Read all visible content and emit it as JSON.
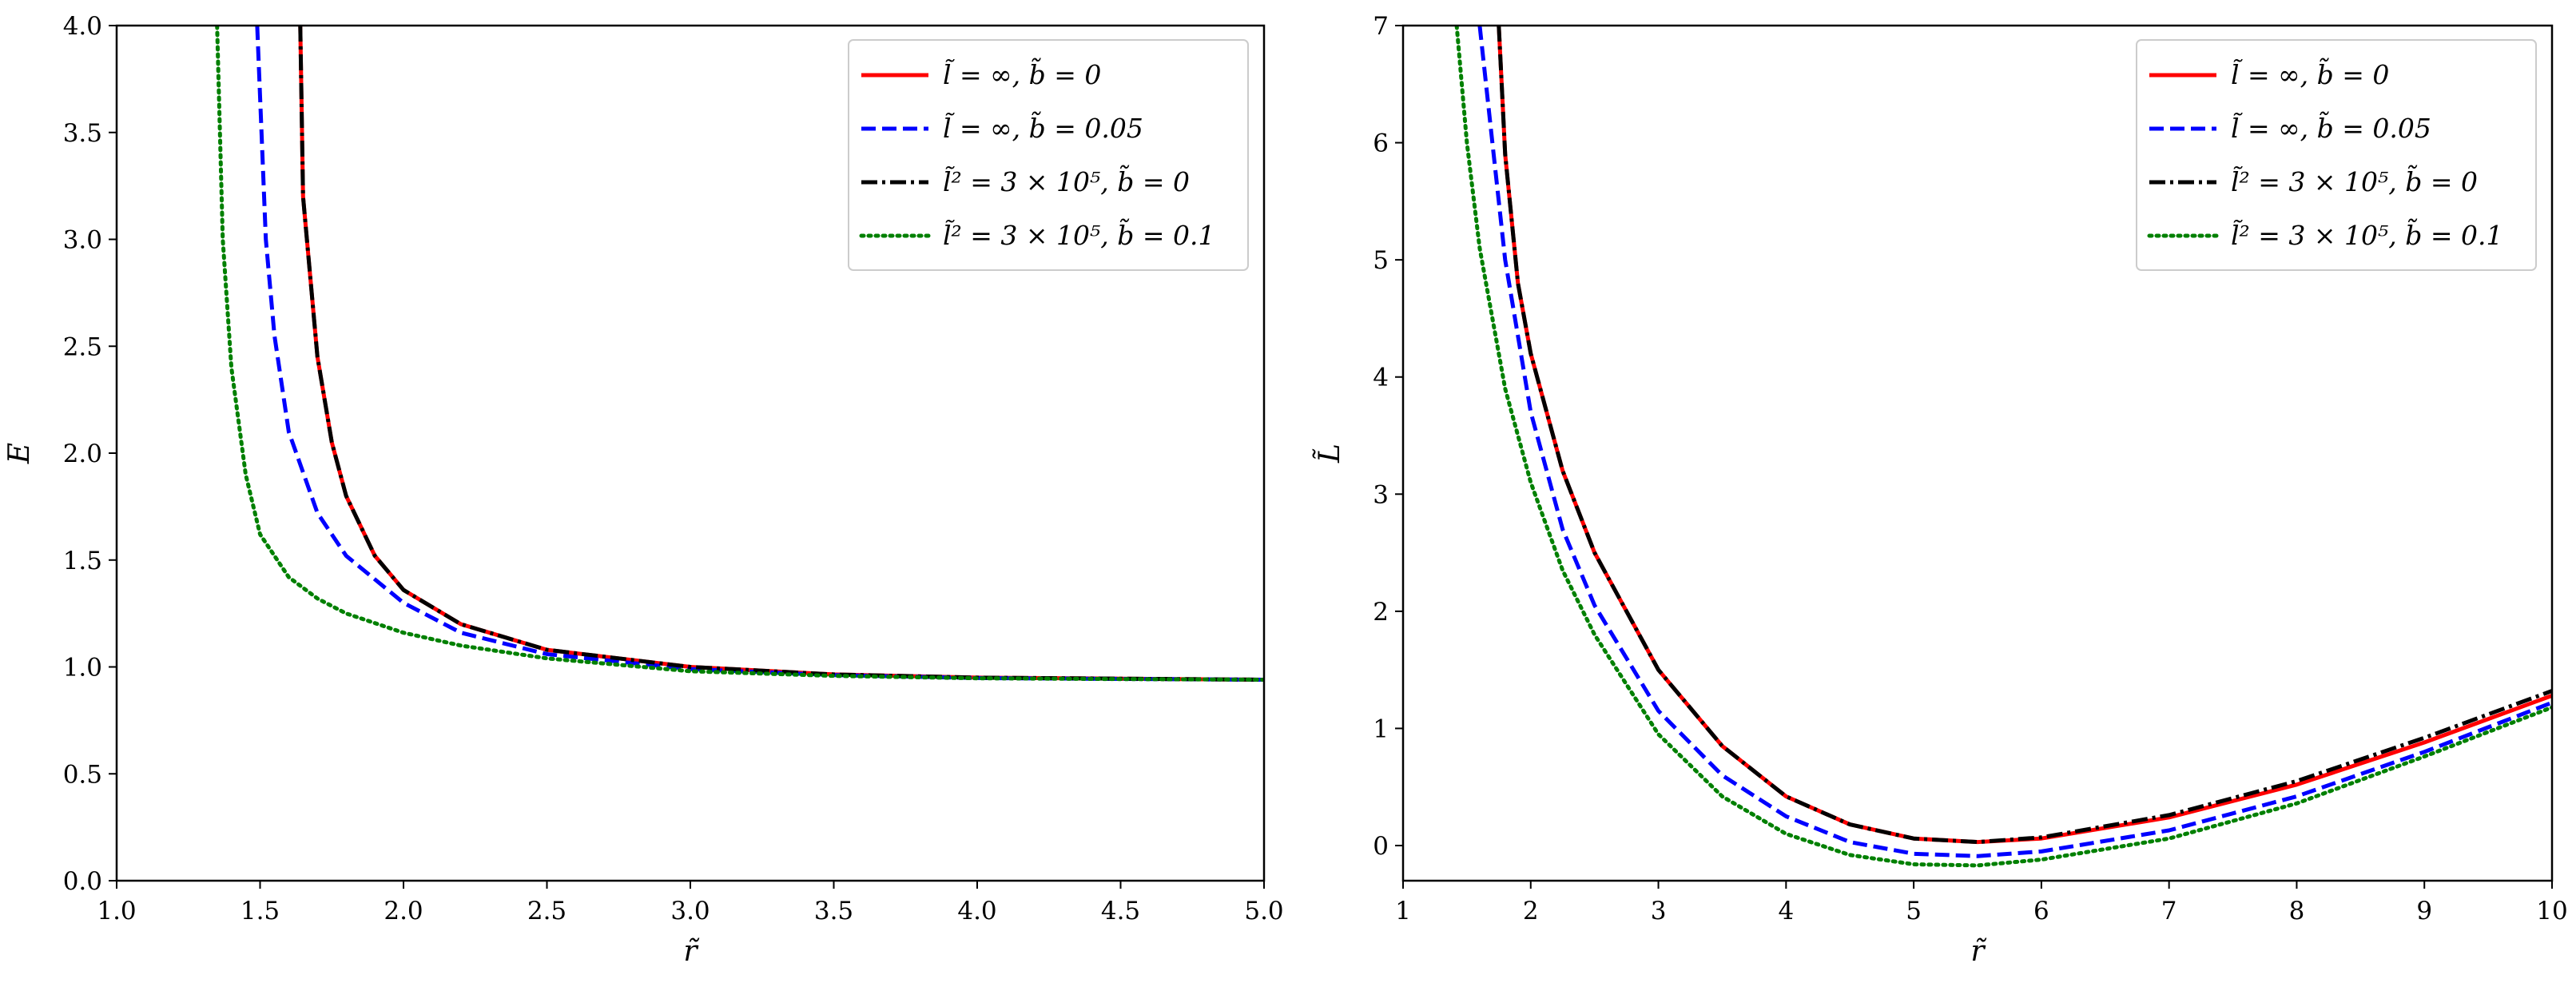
{
  "chart_data": [
    {
      "type": "line",
      "xlabel": "r̃",
      "ylabel": "E",
      "xlim": [
        1.0,
        5.0
      ],
      "ylim": [
        0.0,
        4.0
      ],
      "xticks": [
        "1.0",
        "1.5",
        "2.0",
        "2.5",
        "3.0",
        "3.5",
        "4.0",
        "4.5",
        "5.0"
      ],
      "yticks": [
        "0.0",
        "0.5",
        "1.0",
        "1.5",
        "2.0",
        "2.5",
        "3.0",
        "3.5",
        "4.0"
      ],
      "grid": false,
      "legend_position": "top-right",
      "series": [
        {
          "name": "l̃ = ∞, b̃ = 0",
          "color": "#ff0000",
          "style": "solid",
          "x": [
            1.64,
            1.65,
            1.7,
            1.75,
            1.8,
            1.9,
            2.0,
            2.2,
            2.5,
            3.0,
            3.5,
            4.0,
            4.5,
            5.0
          ],
          "y": [
            4.0,
            3.2,
            2.45,
            2.05,
            1.8,
            1.52,
            1.36,
            1.2,
            1.08,
            1.0,
            0.965,
            0.95,
            0.945,
            0.94
          ]
        },
        {
          "name": "l̃ = ∞, b̃ = 0.05",
          "color": "#0000ff",
          "style": "dashed",
          "x": [
            1.49,
            1.52,
            1.55,
            1.6,
            1.7,
            1.8,
            2.0,
            2.2,
            2.5,
            3.0,
            3.5,
            4.0,
            4.5,
            5.0
          ],
          "y": [
            4.0,
            3.0,
            2.55,
            2.1,
            1.72,
            1.52,
            1.3,
            1.16,
            1.06,
            0.99,
            0.962,
            0.948,
            0.944,
            0.94
          ]
        },
        {
          "name": "l̃² = 3 × 10⁵, b̃ = 0",
          "color": "#000000",
          "style": "dashdot",
          "x": [
            1.64,
            1.65,
            1.7,
            1.75,
            1.8,
            1.9,
            2.0,
            2.2,
            2.5,
            3.0,
            3.5,
            4.0,
            4.5,
            5.0
          ],
          "y": [
            4.0,
            3.2,
            2.45,
            2.05,
            1.8,
            1.52,
            1.36,
            1.2,
            1.08,
            1.0,
            0.965,
            0.95,
            0.945,
            0.94
          ]
        },
        {
          "name": "l̃² = 3 × 10⁵, b̃ = 0.1",
          "color": "#008000",
          "style": "dotted",
          "x": [
            1.35,
            1.37,
            1.4,
            1.45,
            1.5,
            1.6,
            1.7,
            1.8,
            2.0,
            2.2,
            2.5,
            3.0,
            3.5,
            4.0,
            4.5,
            5.0
          ],
          "y": [
            4.0,
            3.0,
            2.4,
            1.9,
            1.62,
            1.42,
            1.32,
            1.25,
            1.16,
            1.1,
            1.04,
            0.98,
            0.958,
            0.947,
            0.943,
            0.94
          ]
        }
      ]
    },
    {
      "type": "line",
      "xlabel": "r̃",
      "ylabel": "L̃",
      "xlim": [
        1,
        10
      ],
      "ylim": [
        -0.3,
        7
      ],
      "xticks": [
        "1",
        "2",
        "3",
        "4",
        "5",
        "6",
        "7",
        "8",
        "9",
        "10"
      ],
      "yticks": [
        "0",
        "1",
        "2",
        "3",
        "4",
        "5",
        "6",
        "7"
      ],
      "grid": false,
      "legend_position": "top-right",
      "series": [
        {
          "name": "l̃ = ∞, b̃ = 0",
          "color": "#ff0000",
          "style": "solid",
          "x": [
            1.75,
            1.8,
            1.9,
            2.0,
            2.25,
            2.5,
            3.0,
            3.5,
            4.0,
            4.5,
            5.0,
            5.5,
            6.0,
            7.0,
            8.0,
            9.0,
            10.0
          ],
          "y": [
            7.0,
            5.9,
            4.8,
            4.2,
            3.2,
            2.5,
            1.5,
            0.85,
            0.42,
            0.18,
            0.06,
            0.03,
            0.06,
            0.24,
            0.52,
            0.88,
            1.28
          ]
        },
        {
          "name": "l̃ = ∞, b̃ = 0.05",
          "color": "#0000ff",
          "style": "dashed",
          "x": [
            1.6,
            1.7,
            1.8,
            2.0,
            2.25,
            2.5,
            3.0,
            3.5,
            4.0,
            4.5,
            5.0,
            5.5,
            6.0,
            7.0,
            8.0,
            9.0,
            10.0
          ],
          "y": [
            7.0,
            6.0,
            5.0,
            3.7,
            2.7,
            2.05,
            1.15,
            0.6,
            0.25,
            0.03,
            -0.07,
            -0.09,
            -0.05,
            0.13,
            0.42,
            0.8,
            1.22
          ]
        },
        {
          "name": "l̃² = 3 × 10⁵, b̃ = 0",
          "color": "#000000",
          "style": "dashdot",
          "x": [
            1.75,
            1.8,
            1.9,
            2.0,
            2.25,
            2.5,
            3.0,
            3.5,
            4.0,
            4.5,
            5.0,
            5.5,
            6.0,
            7.0,
            8.0,
            9.0,
            10.0
          ],
          "y": [
            7.0,
            5.9,
            4.8,
            4.2,
            3.2,
            2.5,
            1.5,
            0.85,
            0.42,
            0.18,
            0.06,
            0.03,
            0.07,
            0.26,
            0.55,
            0.92,
            1.32
          ]
        },
        {
          "name": "l̃² = 3 × 10⁵, b̃ = 0.1",
          "color": "#008000",
          "style": "dotted",
          "x": [
            1.42,
            1.5,
            1.6,
            1.8,
            2.0,
            2.25,
            2.5,
            3.0,
            3.5,
            4.0,
            4.5,
            5.0,
            5.5,
            6.0,
            7.0,
            8.0,
            9.0,
            10.0
          ],
          "y": [
            7.0,
            6.0,
            5.1,
            3.9,
            3.1,
            2.35,
            1.8,
            0.95,
            0.42,
            0.1,
            -0.08,
            -0.16,
            -0.17,
            -0.12,
            0.06,
            0.36,
            0.76,
            1.18
          ]
        }
      ]
    }
  ]
}
